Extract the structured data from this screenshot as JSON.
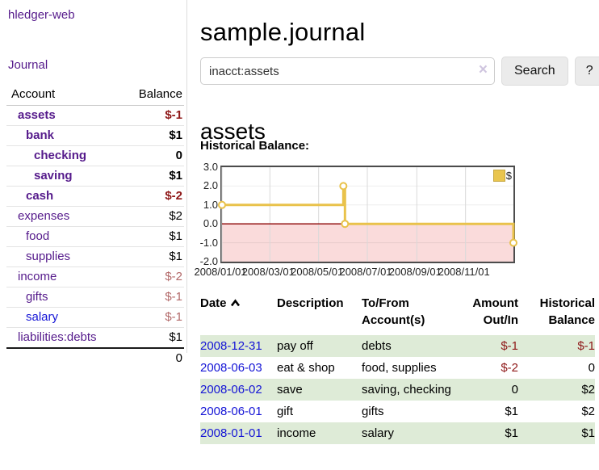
{
  "brand": "hledger-web",
  "sidebar": {
    "journal_label": "Journal",
    "accounts_table": {
      "headers": {
        "account": "Account",
        "balance": "Balance"
      },
      "rows": [
        {
          "name": "assets",
          "indent": 1,
          "bold": true,
          "balance": "$-1",
          "balance_style": "neg-strong"
        },
        {
          "name": "bank",
          "indent": 2,
          "bold": true,
          "balance": "$1",
          "balance_style": "pos"
        },
        {
          "name": "checking",
          "indent": 3,
          "bold": true,
          "balance": "0",
          "balance_style": "pos"
        },
        {
          "name": "saving",
          "indent": 3,
          "bold": true,
          "balance": "$1",
          "balance_style": "pos"
        },
        {
          "name": "cash",
          "indent": 2,
          "bold": true,
          "balance": "$-2",
          "balance_style": "neg-strong"
        },
        {
          "name": "expenses",
          "indent": 1,
          "bold": false,
          "balance": "$2",
          "balance_style": "pos"
        },
        {
          "name": "food",
          "indent": 2,
          "bold": false,
          "balance": "$1",
          "balance_style": "pos"
        },
        {
          "name": "supplies",
          "indent": 2,
          "bold": false,
          "balance": "$1",
          "balance_style": "pos"
        },
        {
          "name": "income",
          "indent": 1,
          "bold": false,
          "balance": "$-2",
          "balance_style": "neg-muted"
        },
        {
          "name": "gifts",
          "indent": 2,
          "bold": false,
          "balance": "$-1",
          "balance_style": "neg-muted"
        },
        {
          "name": "salary",
          "indent": 2,
          "bold": false,
          "link_color": "blue",
          "balance": "$-1",
          "balance_style": "neg-muted"
        },
        {
          "name": "liabilities:debts",
          "indent": 1,
          "bold": false,
          "balance": "$1",
          "balance_style": "pos"
        }
      ],
      "total": "0"
    }
  },
  "header": {
    "title": "sample.journal"
  },
  "search": {
    "value": "inacct:assets",
    "clear_icon": "×",
    "search_button": "Search",
    "help_button": "?"
  },
  "account_page": {
    "title": "assets",
    "chart_label": "Historical Balance:"
  },
  "chart_data": {
    "type": "line",
    "title": "Historical Balance",
    "legend": [
      {
        "label": "$",
        "color": "#e9c54e"
      }
    ],
    "ylim": [
      -2,
      3
    ],
    "y_ticks": [
      "3.0",
      "2.0",
      "1.0",
      "0.0",
      "-1.0",
      "-2.0"
    ],
    "y_tick_values": [
      3,
      2,
      1,
      0,
      -1,
      -2
    ],
    "x_domain_days": [
      0,
      365
    ],
    "x_ticks": [
      {
        "label": "2008/01/01",
        "day": 0
      },
      {
        "label": "2008/03/01",
        "day": 60
      },
      {
        "label": "2008/05/01",
        "day": 121
      },
      {
        "label": "2008/07/01",
        "day": 182
      },
      {
        "label": "2008/09/01",
        "day": 244
      },
      {
        "label": "2008/11/01",
        "day": 305
      }
    ],
    "points": [
      {
        "date": "2008-01-01",
        "day": 0,
        "value": 1
      },
      {
        "date": "2008-06-01",
        "day": 152,
        "value": 2
      },
      {
        "date": "2008-06-03",
        "day": 154,
        "value": 0
      },
      {
        "date": "2008-12-31",
        "day": 365,
        "value": -1
      }
    ],
    "line_color": "#e9c24b",
    "negative_fill": "#fadbdb",
    "zero_line_color": "#8b0000",
    "grid_on": true,
    "legend_position": "top-right"
  },
  "register": {
    "headers": {
      "date": "Date",
      "description": "Description",
      "tofrom": "To/From Account(s)",
      "amount": "Amount Out/In",
      "balance": "Historical Balance"
    },
    "rows": [
      {
        "date": "2008-12-31",
        "description": "pay off",
        "accounts": "debts",
        "amount": "$-1",
        "amount_neg": true,
        "balance": "$-1",
        "balance_neg": true
      },
      {
        "date": "2008-06-03",
        "description": "eat & shop",
        "accounts": "food, supplies",
        "amount": "$-2",
        "amount_neg": true,
        "balance": "0",
        "balance_neg": false
      },
      {
        "date": "2008-06-02",
        "description": "save",
        "accounts": "saving, checking",
        "amount": "0",
        "amount_neg": false,
        "balance": "$2",
        "balance_neg": false
      },
      {
        "date": "2008-06-01",
        "description": "gift",
        "accounts": "gifts",
        "amount": "$1",
        "amount_neg": false,
        "balance": "$2",
        "balance_neg": false
      },
      {
        "date": "2008-01-01",
        "description": "income",
        "accounts": "salary",
        "amount": "$1",
        "amount_neg": false,
        "balance": "$1",
        "balance_neg": false
      }
    ]
  }
}
